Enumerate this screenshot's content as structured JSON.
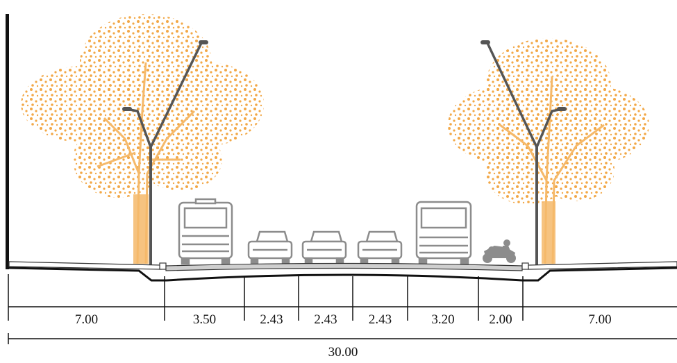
{
  "colors": {
    "tree": "#f2a847",
    "trunk": "#f5b96a",
    "vehicle": "#8c8c8c",
    "pole": "#555555",
    "road": "#111111"
  },
  "segments": [
    {
      "value": 7.0,
      "label": "7.00"
    },
    {
      "value": 3.5,
      "label": "3.50"
    },
    {
      "value": 2.43,
      "label": "2.43"
    },
    {
      "value": 2.43,
      "label": "2.43"
    },
    {
      "value": 2.43,
      "label": "2.43"
    },
    {
      "value": 3.2,
      "label": "3.20"
    },
    {
      "value": 2.0,
      "label": "2.00"
    },
    {
      "value": 7.0,
      "label": "7.00"
    }
  ],
  "total": {
    "value": 30.0,
    "label": "30.00"
  }
}
